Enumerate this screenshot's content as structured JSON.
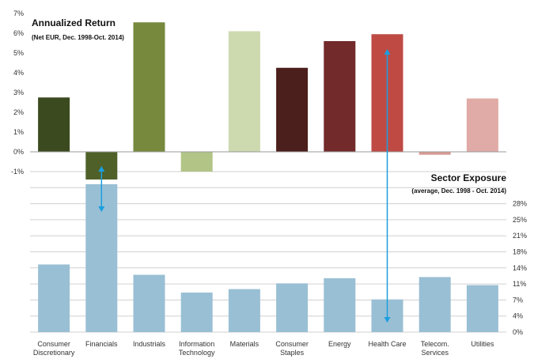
{
  "chart_data": [
    {
      "type": "bar",
      "title": "Annualized Return",
      "subtitle": "(Net EUR, Dec. 1998-Oct. 2014)",
      "categories": [
        [
          "Consumer",
          "Discretionary"
        ],
        [
          "Financials"
        ],
        [
          "Industrials"
        ],
        [
          "Information",
          "Technology"
        ],
        [
          "Materials"
        ],
        [
          "Consumer",
          "Staples"
        ],
        [
          "Energy"
        ],
        [
          "Health Care"
        ],
        [
          "Telecom.",
          "Services"
        ],
        [
          "Utilities"
        ]
      ],
      "values": [
        2.75,
        -1.4,
        6.55,
        -1.0,
        6.1,
        4.25,
        5.6,
        5.95,
        -0.15,
        2.7
      ],
      "colors": [
        "#3b4a1f",
        "#4f6129",
        "#76893d",
        "#b2c587",
        "#cdd9af",
        "#4b1f1b",
        "#722a2a",
        "#bf4a44",
        "#d99b95",
        "#e0aaa6"
      ],
      "ylim": [
        -1,
        7
      ],
      "yticks": [
        -1,
        0,
        1,
        2,
        3,
        4,
        5,
        6,
        7
      ],
      "ytick_labels": [
        "-1%",
        "0%",
        "1%",
        "2%",
        "3%",
        "4%",
        "5%",
        "6%",
        "7%"
      ],
      "grid": false
    },
    {
      "type": "bar",
      "title": "Sector Exposure",
      "subtitle": "(average, Dec. 1998 - Oct. 2014)",
      "categories": [
        [
          "Consumer",
          "Discretionary"
        ],
        [
          "Financials"
        ],
        [
          "Industrials"
        ],
        [
          "Information",
          "Technology"
        ],
        [
          "Materials"
        ],
        [
          "Consumer",
          "Staples"
        ],
        [
          "Energy"
        ],
        [
          "Health Care"
        ],
        [
          "Telecom.",
          "Services"
        ],
        [
          "Utilities"
        ]
      ],
      "values": [
        11.8,
        25.8,
        10.0,
        6.9,
        7.5,
        8.5,
        9.4,
        5.7,
        9.6,
        8.2
      ],
      "color": "#99bfd4",
      "ylim": [
        0,
        28
      ],
      "yticks": [
        0,
        2.8,
        5.6,
        8.4,
        11.2,
        14,
        16.8,
        19.6,
        22.4,
        25.2,
        28
      ],
      "ytick_labels": [
        "0%",
        "4%",
        "7%",
        "11%",
        "14%",
        "18%",
        "21%",
        "25%",
        "28%",
        "",
        ""
      ],
      "grid": true
    }
  ],
  "arrows": [
    {
      "category_index": 1,
      "color": "#1a9fe0"
    },
    {
      "category_index": 7,
      "color": "#1a9fe0"
    }
  ]
}
